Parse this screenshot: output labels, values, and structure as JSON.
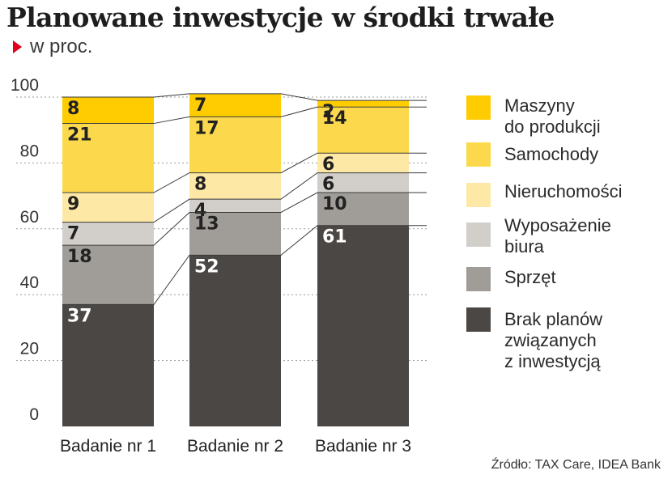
{
  "header": {
    "title": "Planowane inwestycje w środki trwałe",
    "subtitle": "w proc."
  },
  "source": "Źródło: TAX Care, IDEA Bank",
  "chart_data": {
    "type": "bar",
    "stacked": true,
    "title": "Planowane inwestycje w środki trwałe",
    "subtitle": "w proc.",
    "categories": [
      "Badanie nr 1",
      "Badanie nr 2",
      "Badanie nr 3"
    ],
    "ylim": [
      0,
      100
    ],
    "yticks": [
      "0",
      "20",
      "40",
      "60",
      "80",
      "100"
    ],
    "grid": true,
    "legend_position": "right",
    "series": [
      {
        "name": "Brak planów związanych z inwestycją",
        "values": [
          37,
          52,
          61
        ],
        "color": "#4a4745",
        "label_color": "#ffffff"
      },
      {
        "name": "Sprzęt",
        "values": [
          18,
          13,
          10
        ],
        "color": "#a09d99",
        "label_color": "#222222"
      },
      {
        "name": "Wyposażenie biura",
        "values": [
          7,
          4,
          6
        ],
        "color": "#d2cfcb",
        "label_color": "#222222"
      },
      {
        "name": "Nieruchomości",
        "values": [
          9,
          8,
          6
        ],
        "color": "#fde8a6",
        "label_color": "#222222"
      },
      {
        "name": "Samochody",
        "values": [
          21,
          17,
          14
        ],
        "color": "#fcd94c",
        "label_color": "#222222"
      },
      {
        "name": "Maszyny do produkcji",
        "values": [
          8,
          7,
          2
        ],
        "color": "#fecc00",
        "label_color": "#222222"
      }
    ]
  },
  "legend": [
    {
      "label": "Maszyny\ndo produkcji",
      "color": "#fecc00"
    },
    {
      "label": "Samochody",
      "color": "#fcd94c"
    },
    {
      "label": "Nieruchomości",
      "color": "#fde8a6"
    },
    {
      "label": "Wyposażenie\nbiura",
      "color": "#d2cfcb"
    },
    {
      "label": "Sprzęt",
      "color": "#a09d99"
    },
    {
      "label": "Brak planów\nzwiązanych\nz inwestycją",
      "color": "#4a4745"
    }
  ]
}
